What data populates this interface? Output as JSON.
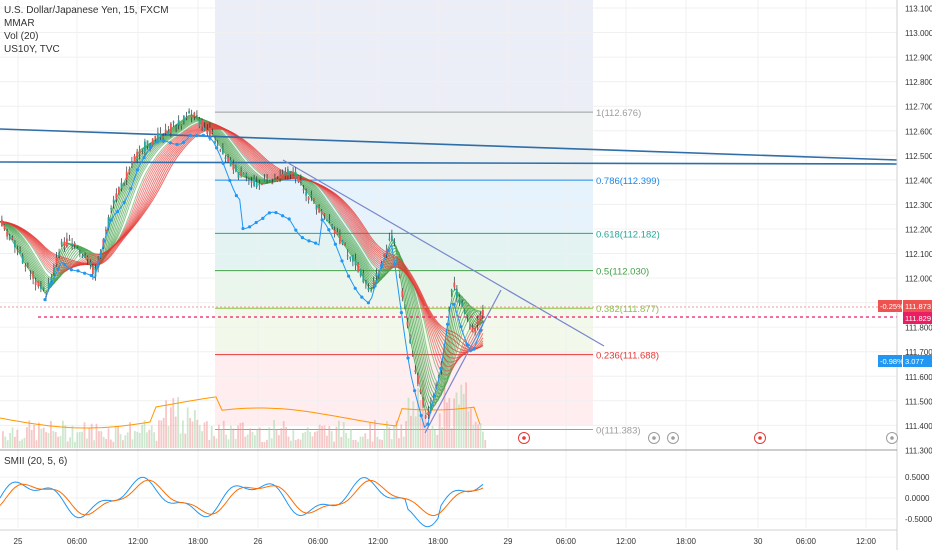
{
  "legend": {
    "title": "U.S. Dollar/Japanese Yen, 15, FXCM",
    "items": [
      "MMAR",
      "Vol (20)",
      "US10Y, TVC"
    ]
  },
  "sub_legend": "SMII (20, 5, 6)",
  "colors": {
    "trendline": "#2f6ea8",
    "wedge": "#7986cb",
    "candle_up": "#26a69a",
    "candle_down": "#ef5350",
    "us10y": "#2196f3",
    "ma_ribbon_red": "#e53935",
    "ma_ribbon_green": "#43a047",
    "volume_up": "#a5d6a7",
    "volume_down": "#ef9a9a",
    "vol_ma": "#ff9800",
    "smii": "#2196f3",
    "smii_signal": "#ff6d00",
    "magenta_line": "#e91e63"
  },
  "chart_data": [
    {
      "type": "candlestick",
      "title": "U.S. Dollar/Japanese Yen, 15, FXCM",
      "xlabel": "",
      "ylabel": "",
      "ylim": [
        111.3,
        113.1
      ],
      "price_ticks": [
        "113.100",
        "113.000",
        "112.900",
        "112.800",
        "112.700",
        "112.600",
        "112.500",
        "112.400",
        "112.300",
        "112.200",
        "112.100",
        "112.000",
        "111.900",
        "111.800",
        "111.700",
        "111.600",
        "111.500",
        "111.400",
        "111.300"
      ],
      "time_ticks": [
        "25",
        "06:00",
        "12:00",
        "18:00",
        "26",
        "06:00",
        "12:00",
        "18:00",
        "29",
        "06:00",
        "12:00",
        "18:00",
        "30",
        "06:00",
        "12:00"
      ],
      "fibonacci": [
        {
          "label": "1(112.676)",
          "level": 112.676
        },
        {
          "label": "0.786(112.399)",
          "level": 112.399
        },
        {
          "label": "0.618(112.182)",
          "level": 112.182
        },
        {
          "label": "0.5(112.030)",
          "level": 112.03
        },
        {
          "label": "0.382(111.877)",
          "level": 111.877
        },
        {
          "label": "0.236(111.688)",
          "level": 111.688
        },
        {
          "label": "0(111.383)",
          "level": 111.383
        }
      ],
      "price_labels": [
        {
          "text": "-0.25%",
          "color": "#ef5350"
        },
        {
          "text": "111.873",
          "color": "#ef5350"
        },
        {
          "text": "111.829",
          "color": "#e91e63"
        },
        {
          "text": "-0.98%",
          "color": "#2196f3"
        },
        {
          "text": "3.077",
          "color": "#2196f3"
        }
      ],
      "close_series": [
        {
          "x": "24 12:00",
          "close": 112.23
        },
        {
          "x": "24 18:00",
          "close": 112.05
        },
        {
          "x": "25 00:00",
          "close": 111.93
        },
        {
          "x": "25 03:00",
          "close": 112.15
        },
        {
          "x": "25 06:00",
          "close": 112.12
        },
        {
          "x": "25 09:00",
          "close": 112.02
        },
        {
          "x": "25 12:00",
          "close": 112.3
        },
        {
          "x": "25 15:00",
          "close": 112.52
        },
        {
          "x": "25 17:00",
          "close": 112.58
        },
        {
          "x": "25 19:00",
          "close": 112.67
        },
        {
          "x": "25 21:00",
          "close": 112.58
        },
        {
          "x": "26 00:00",
          "close": 112.42
        },
        {
          "x": "26 03:00",
          "close": 112.38
        },
        {
          "x": "26 06:00",
          "close": 112.44
        },
        {
          "x": "26 09:00",
          "close": 112.28
        },
        {
          "x": "26 12:00",
          "close": 112.08
        },
        {
          "x": "26 14:00",
          "close": 111.94
        },
        {
          "x": "26 15:00",
          "close": 112.18
        },
        {
          "x": "26 16:00",
          "close": 111.72
        },
        {
          "x": "26 17:00",
          "close": 111.42
        },
        {
          "x": "26 18:00",
          "close": 111.62
        },
        {
          "x": "26 19:00",
          "close": 111.98
        },
        {
          "x": "26 20:00",
          "close": 111.88
        },
        {
          "x": "26 21:00",
          "close": 111.78
        },
        {
          "x": "26 22:00",
          "close": 111.87
        }
      ]
    },
    {
      "type": "line",
      "title": "SMII (20, 5, 6)",
      "ylim": [
        -0.6,
        0.6
      ],
      "ticks": [
        "0.5000",
        "0.0000",
        "-0.5000"
      ]
    }
  ]
}
